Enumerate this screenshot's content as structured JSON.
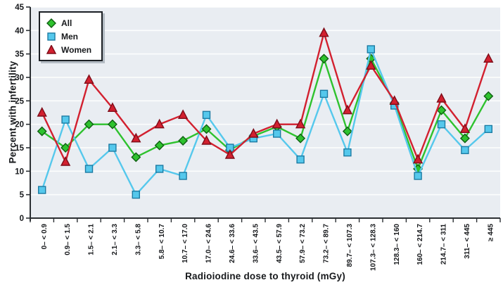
{
  "chart_data": {
    "type": "line",
    "title": "",
    "xlabel": "Radioiodine dose to thyroid (mGy)",
    "ylabel": "Percent with infertility",
    "ylim": [
      0,
      45
    ],
    "yticks": [
      0,
      5,
      10,
      15,
      20,
      25,
      30,
      35,
      40,
      45
    ],
    "grid": true,
    "legend_position": "top-left",
    "categories": [
      "0– < 0.9",
      "0.9– < 1.5",
      "1.5– < 2.1",
      "2.1– < 3.3",
      "3.3– < 5.8",
      "5.8– < 10.7",
      "10.7– < 17.0",
      "17.0– < 24.6",
      "24.6– < 33.6",
      "33.6– < 43.5",
      "43.5– < 57.9",
      "57.9– < 73.2",
      "73.2– < 89.7",
      "89.7– < 107.3",
      "107.3– < 128.3",
      "128.3– < 160",
      "160– < 214.7",
      "214.7– < 311",
      "311– < 445",
      "≥ 445"
    ],
    "series": [
      {
        "name": "All",
        "marker": "diamond",
        "color": "#2ec22e",
        "marker_border": "#0f5e12",
        "values": [
          18.5,
          15,
          20,
          20,
          13,
          15.5,
          16.5,
          19,
          14.5,
          17.5,
          19.5,
          17,
          34,
          18.5,
          34,
          24.5,
          10.5,
          23,
          17,
          26
        ]
      },
      {
        "name": "Men",
        "marker": "square",
        "color": "#55c8ec",
        "marker_border": "#1c7ba3",
        "values": [
          6,
          21,
          10.5,
          15,
          5,
          10.5,
          9,
          22,
          15,
          17,
          18,
          12.5,
          26.5,
          14,
          36,
          24,
          9,
          20,
          14.5,
          19
        ]
      },
      {
        "name": "Women",
        "marker": "triangle",
        "color": "#d2202f",
        "marker_border": "#7e0d19",
        "values": [
          22.5,
          12,
          29.5,
          23.5,
          17,
          20,
          22,
          16.5,
          13.5,
          18,
          20,
          20,
          39.5,
          23,
          32.5,
          25,
          12.5,
          25.5,
          19,
          34
        ]
      }
    ]
  },
  "colors": {
    "plot_background": "#e9edf2",
    "gridline": "#ffffff",
    "axis": "#2b2f33",
    "text": "#17191c",
    "legend_shadow": "#b4bcc4"
  }
}
